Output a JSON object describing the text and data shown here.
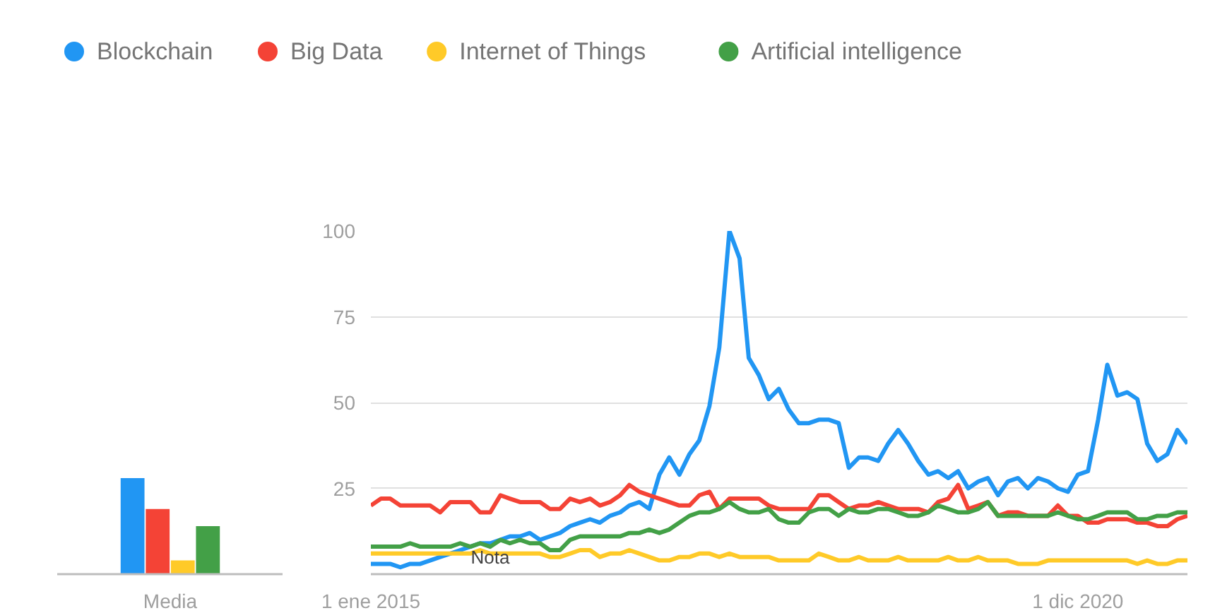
{
  "chart_data": [
    {
      "type": "bar",
      "categories": [
        "Media"
      ],
      "ylim": [
        0,
        100
      ],
      "grid": false,
      "series": [
        {
          "color": "#2196f3",
          "values": [
            28
          ]
        },
        {
          "color": "#f44336",
          "values": [
            19
          ]
        },
        {
          "color": "#ffca28",
          "values": [
            4
          ]
        },
        {
          "color": "#43a047",
          "values": [
            14
          ]
        }
      ]
    },
    {
      "type": "line",
      "legend": "top",
      "grid": "y",
      "marker": "none",
      "line_style": "solid",
      "xlim": [
        "2015-01",
        "2021-11"
      ],
      "ylim": [
        0,
        100
      ],
      "yticks": [
        25,
        50,
        75,
        100
      ],
      "xticks": [
        {
          "value": "2015-01",
          "label": "1 ene 2015"
        },
        {
          "value": "2020-12",
          "label": "1 dic 2020"
        }
      ],
      "annotations": [
        {
          "text": "Nota",
          "x": "2016-01",
          "y": 5
        }
      ],
      "x": [
        "2015-01",
        "2015-02",
        "2015-03",
        "2015-04",
        "2015-05",
        "2015-06",
        "2015-07",
        "2015-08",
        "2015-09",
        "2015-10",
        "2015-11",
        "2015-12",
        "2016-01",
        "2016-02",
        "2016-03",
        "2016-04",
        "2016-05",
        "2016-06",
        "2016-07",
        "2016-08",
        "2016-09",
        "2016-10",
        "2016-11",
        "2016-12",
        "2017-01",
        "2017-02",
        "2017-03",
        "2017-04",
        "2017-05",
        "2017-06",
        "2017-07",
        "2017-08",
        "2017-09",
        "2017-10",
        "2017-11",
        "2017-12",
        "2018-01",
        "2018-02",
        "2018-03",
        "2018-04",
        "2018-05",
        "2018-06",
        "2018-07",
        "2018-08",
        "2018-09",
        "2018-10",
        "2018-11",
        "2018-12",
        "2019-01",
        "2019-02",
        "2019-03",
        "2019-04",
        "2019-05",
        "2019-06",
        "2019-07",
        "2019-08",
        "2019-09",
        "2019-10",
        "2019-11",
        "2019-12",
        "2020-01",
        "2020-02",
        "2020-03",
        "2020-04",
        "2020-05",
        "2020-06",
        "2020-07",
        "2020-08",
        "2020-09",
        "2020-10",
        "2020-11",
        "2020-12",
        "2021-01",
        "2021-02",
        "2021-03",
        "2021-04",
        "2021-05",
        "2021-06",
        "2021-07",
        "2021-08",
        "2021-09",
        "2021-10",
        "2021-11"
      ],
      "series": [
        {
          "name": "Blockchain",
          "color": "#2196f3",
          "values": [
            3,
            3,
            3,
            2,
            3,
            3,
            4,
            5,
            6,
            7,
            8,
            9,
            9,
            10,
            11,
            11,
            12,
            10,
            11,
            12,
            14,
            15,
            16,
            15,
            17,
            18,
            20,
            21,
            19,
            29,
            34,
            29,
            35,
            39,
            49,
            66,
            100,
            92,
            63,
            58,
            51,
            54,
            48,
            44,
            44,
            45,
            45,
            44,
            31,
            34,
            34,
            33,
            38,
            42,
            38,
            33,
            29,
            30,
            28,
            30,
            25,
            27,
            28,
            23,
            27,
            28,
            25,
            28,
            27,
            25,
            24,
            29,
            30,
            45,
            61,
            52,
            53,
            51,
            38,
            33,
            35,
            42,
            38
          ]
        },
        {
          "name": "Big Data",
          "color": "#f44336",
          "values": [
            20,
            22,
            22,
            20,
            20,
            20,
            20,
            18,
            21,
            21,
            21,
            18,
            18,
            23,
            22,
            21,
            21,
            21,
            19,
            19,
            22,
            21,
            22,
            20,
            21,
            23,
            26,
            24,
            23,
            22,
            21,
            20,
            20,
            23,
            24,
            19,
            22,
            22,
            22,
            22,
            20,
            19,
            19,
            19,
            19,
            23,
            23,
            21,
            19,
            20,
            20,
            21,
            20,
            19,
            19,
            19,
            18,
            21,
            22,
            26,
            19,
            20,
            21,
            17,
            18,
            18,
            17,
            17,
            17,
            20,
            17,
            17,
            15,
            15,
            16,
            16,
            16,
            15,
            15,
            14,
            14,
            16,
            17
          ]
        },
        {
          "name": "Internet of Things",
          "color": "#ffca28",
          "values": [
            6,
            6,
            6,
            6,
            6,
            6,
            6,
            6,
            6,
            6,
            6,
            7,
            6,
            6,
            6,
            6,
            6,
            6,
            5,
            5,
            6,
            7,
            7,
            5,
            6,
            6,
            7,
            6,
            5,
            4,
            4,
            5,
            5,
            6,
            6,
            5,
            6,
            5,
            5,
            5,
            5,
            4,
            4,
            4,
            4,
            6,
            5,
            4,
            4,
            5,
            4,
            4,
            4,
            5,
            4,
            4,
            4,
            4,
            5,
            4,
            4,
            5,
            4,
            4,
            4,
            3,
            3,
            3,
            4,
            4,
            4,
            4,
            4,
            4,
            4,
            4,
            4,
            3,
            4,
            3,
            3,
            4,
            4
          ]
        },
        {
          "name": "Artificial intelligence",
          "color": "#43a047",
          "values": [
            8,
            8,
            8,
            8,
            9,
            8,
            8,
            8,
            8,
            9,
            8,
            9,
            8,
            10,
            9,
            10,
            9,
            9,
            7,
            7,
            10,
            11,
            11,
            11,
            11,
            11,
            12,
            12,
            13,
            12,
            13,
            15,
            17,
            18,
            18,
            19,
            21,
            19,
            18,
            18,
            19,
            16,
            15,
            15,
            18,
            19,
            19,
            17,
            19,
            18,
            18,
            19,
            19,
            18,
            17,
            17,
            18,
            20,
            19,
            18,
            18,
            19,
            21,
            17,
            17,
            17,
            17,
            17,
            17,
            18,
            17,
            16,
            16,
            17,
            18,
            18,
            18,
            16,
            16,
            17,
            17,
            18,
            18
          ]
        }
      ]
    }
  ]
}
